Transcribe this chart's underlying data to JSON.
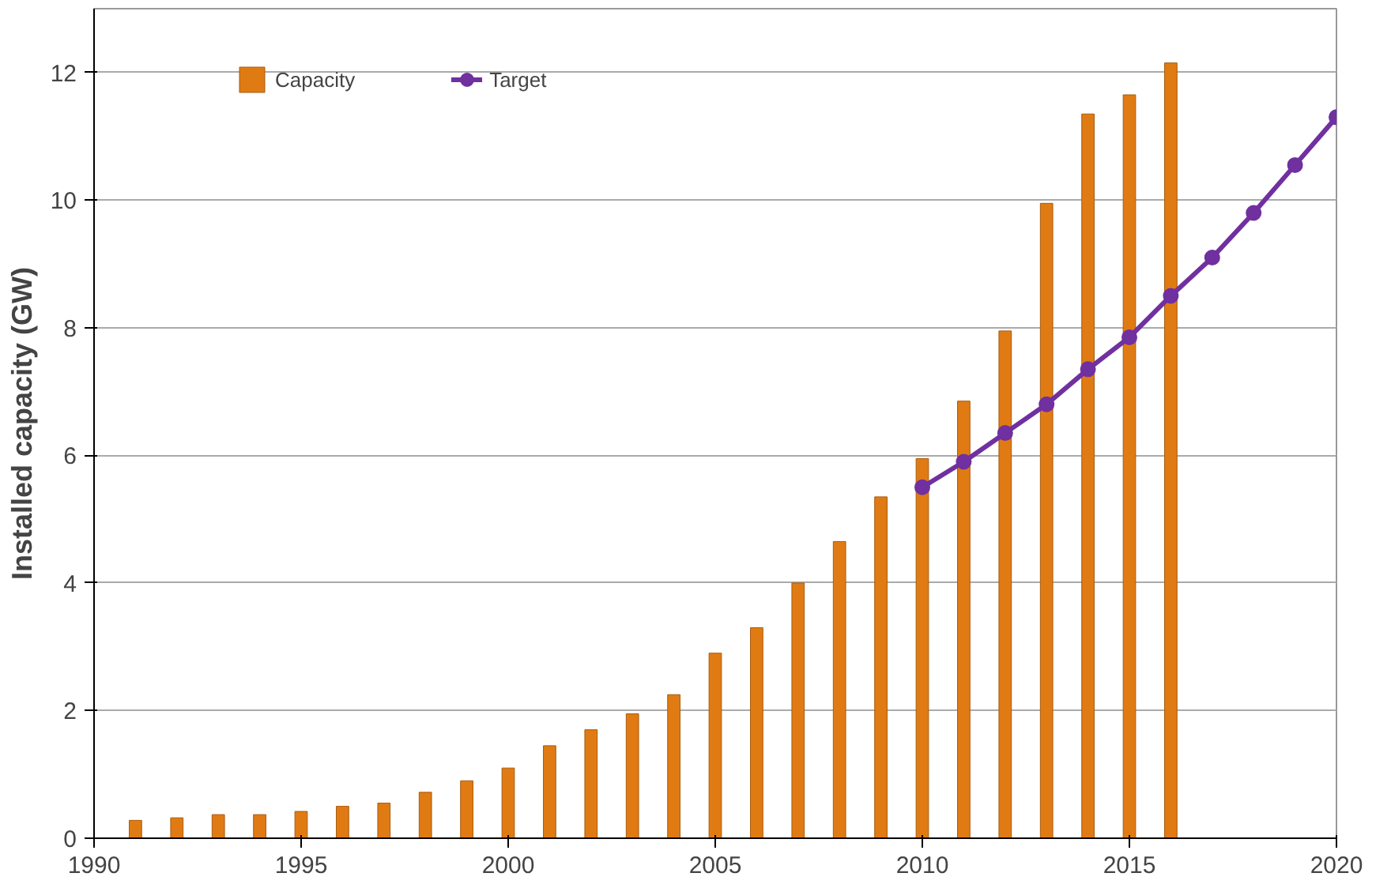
{
  "chart_data": {
    "type": "bar",
    "ylabel": "Installed capacity (GW)",
    "x": [
      1991,
      1992,
      1993,
      1994,
      1995,
      1996,
      1997,
      1998,
      1999,
      2000,
      2001,
      2002,
      2003,
      2004,
      2005,
      2006,
      2007,
      2008,
      2009,
      2010,
      2011,
      2012,
      2013,
      2014,
      2015,
      2016
    ],
    "series": [
      {
        "name": "Capacity",
        "color": "#e07b14",
        "values": [
          0.28,
          0.32,
          0.37,
          0.37,
          0.42,
          0.5,
          0.55,
          0.72,
          0.9,
          1.1,
          1.45,
          1.7,
          1.95,
          2.25,
          2.9,
          3.3,
          4.0,
          4.65,
          5.35,
          5.95,
          6.85,
          7.95,
          9.95,
          11.35,
          11.65,
          12.15
        ]
      },
      {
        "name": "Target",
        "type": "line",
        "color": "#7030a0",
        "marker": "circle",
        "x": [
          2010,
          2011,
          2012,
          2013,
          2014,
          2015,
          2016,
          2017,
          2018,
          2019,
          2020
        ],
        "values": [
          5.5,
          5.9,
          6.35,
          6.8,
          7.35,
          7.85,
          8.5,
          9.1,
          9.8,
          10.55,
          11.3
        ]
      }
    ],
    "xlim": [
      1990,
      2020
    ],
    "xticks": [
      1990,
      1995,
      2000,
      2005,
      2010,
      2015,
      2020
    ],
    "ylim": [
      0,
      13
    ],
    "yticks": [
      0,
      2,
      4,
      6,
      8,
      10,
      12
    ],
    "grid": "y",
    "legend": "top"
  }
}
